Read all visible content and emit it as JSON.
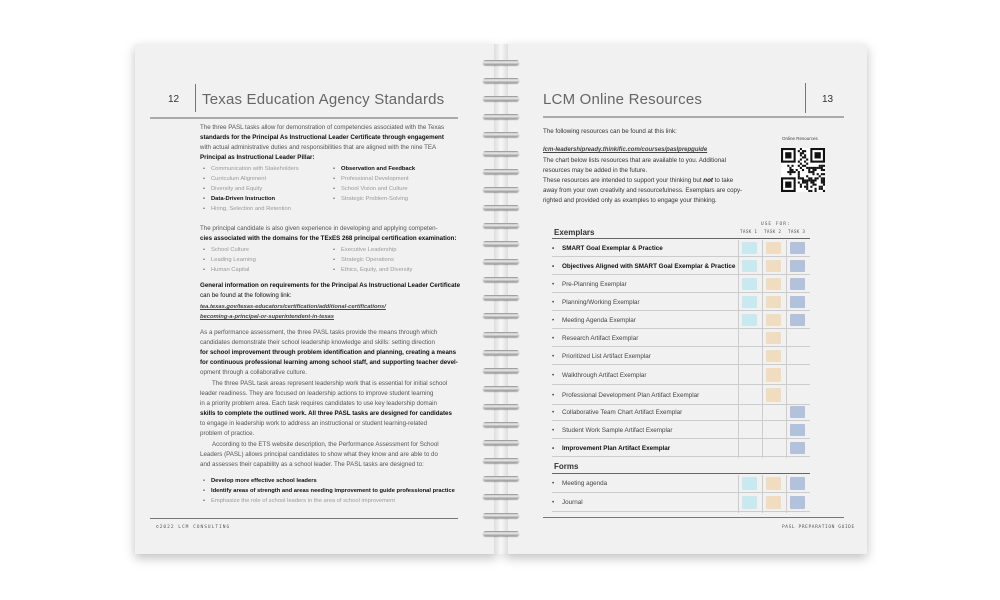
{
  "left_page": {
    "page_number": "12",
    "title": "Texas Education Agency Standards",
    "intro": [
      "The three PASL tasks allow for demonstration of competencies associated with the Texas",
      "standards for the Principal As Instructional Leader Certificate through engagement",
      "with actual administrative duties and responsibilities that are aligned with the nine TEA",
      "Principal as Instructional Leader Pillar:"
    ],
    "pillars_col1": [
      "Communication with Stakeholders",
      "Curriculum Alignment",
      "Diversity and Equity",
      "Data-Driven Instruction",
      "Hiring, Selection and Retention"
    ],
    "pillars_col2": [
      "Observation and Feedback",
      "Professional Development",
      "School Vision and Culture",
      "Strategic Problem-Solving"
    ],
    "domains_intro": [
      "The principal candidate is also given experience in developing and applying competen-",
      "cies associated with the domains for the TExES 268 principal certification examination:"
    ],
    "domains_col1": [
      "School Culture",
      "Leading Learning",
      "Human Capital"
    ],
    "domains_col2": [
      "Executive Leadership",
      "Strategic Operations",
      "Ethics, Equity, and Diversity"
    ],
    "general_info": [
      "General information on requirements for the Principal As Instructional Leader Certificate",
      "can be found at the following link:"
    ],
    "link": [
      "tea.texas.gov/texas-educators/certification/additional-certifications/",
      "becoming-a-principal-or-superintendent-in-texas"
    ],
    "para1": [
      "As a performance assessment, the three PASL tasks provide the means through which",
      "candidates demonstrate their school leadership knowledge and skills: setting direction",
      "for school improvement through problem identification and planning, creating a means",
      "for continuous professional learning among school staff, and supporting teacher devel-",
      "opment through a collaborative culture."
    ],
    "para2": [
      "The three PASL task areas represent leadership work that is essential for initial school",
      "leader readiness. They are focused on leadership actions to improve student learning",
      "in a priority problem area. Each task requires candidates to use key leadership domain",
      "skills to complete the outlined work. All three PASL tasks are designed for candidates",
      "to engage in leadership work to address an instructional or student learning-related",
      "problem of practice."
    ],
    "para3": [
      "According to the ETS website description, the Performance Assessment for School",
      "Leaders (PASL) allows principal candidates to show what they know and are able to do",
      "and assesses their capability as a school leader.  The PASL tasks are designed to:"
    ],
    "goals": [
      "Develop more effective school leaders",
      "Identify areas of strength and areas needing improvement to guide professional practice",
      "Emphasize the role of school leaders in the area of school improvement"
    ],
    "footer": "©2022 LCM CONSULTING"
  },
  "right_page": {
    "page_number": "13",
    "title": "LCM Online Resources",
    "intro": "The following resources can be found at this link:",
    "link": "lcm-leadershipready.thinkific.com/courses/paslprepguide",
    "para": [
      "The chart below lists resources that are available to you. Additional",
      "resources may be added in the future.",
      "These resources are intended to support your thinking but ",
      "not",
      " to take",
      "away from your own creativity and resourcefulness. Exemplars are copy-",
      "righted and provided only as examples to engage your thinking."
    ],
    "qr_label": "Online Resources",
    "use_for": "USE FOR:",
    "task_headers": [
      "TASK 1",
      "TASK 2",
      "TASK 3"
    ],
    "colors": {
      "task1": "#c9e9f0",
      "task2": "#f0dcbe",
      "task3": "#b2c2dd"
    },
    "exemplars_heading": "Exemplars",
    "exemplars": [
      {
        "label": "SMART Goal Exemplar & Practice",
        "bold": true,
        "tasks": [
          1,
          1,
          1
        ]
      },
      {
        "label": "Objectives Aligned with SMART Goal Exemplar & Practice",
        "bold": true,
        "tasks": [
          1,
          1,
          1
        ]
      },
      {
        "label": "Pre-Planning Exemplar",
        "bold": false,
        "tasks": [
          1,
          1,
          1
        ]
      },
      {
        "label": "Planning/Working Exemplar",
        "bold": false,
        "tasks": [
          1,
          1,
          1
        ]
      },
      {
        "label": "Meeting Agenda Exemplar",
        "bold": false,
        "tasks": [
          1,
          1,
          1
        ]
      },
      {
        "label": "Research Artifact Exemplar",
        "bold": false,
        "tasks": [
          0,
          1,
          0
        ]
      },
      {
        "label": "Prioritized List Artifact Exemplar",
        "bold": false,
        "tasks": [
          0,
          1,
          0
        ]
      },
      {
        "label": "Walkthrough Artifact Exemplar",
        "bold": false,
        "tasks": [
          0,
          1,
          0
        ]
      },
      {
        "label": "Professional Development Plan Artifact Exemplar",
        "bold": false,
        "tasks": [
          0,
          1,
          0
        ]
      },
      {
        "label": "Collaborative Team Chart Artifact Exemplar",
        "bold": false,
        "tasks": [
          0,
          0,
          1
        ]
      },
      {
        "label": "Student Work Sample Artifact Exemplar",
        "bold": false,
        "tasks": [
          0,
          0,
          1
        ]
      },
      {
        "label": "Improvement Plan Artifact Exemplar",
        "bold": true,
        "tasks": [
          0,
          0,
          1
        ]
      }
    ],
    "forms_heading": "Forms",
    "forms": [
      {
        "label": "Meeting agenda",
        "bold": false,
        "tasks": [
          1,
          1,
          1
        ]
      },
      {
        "label": "Journal",
        "bold": false,
        "tasks": [
          1,
          1,
          1
        ]
      }
    ],
    "footer": "PASL PREPARATION GUIDE"
  }
}
